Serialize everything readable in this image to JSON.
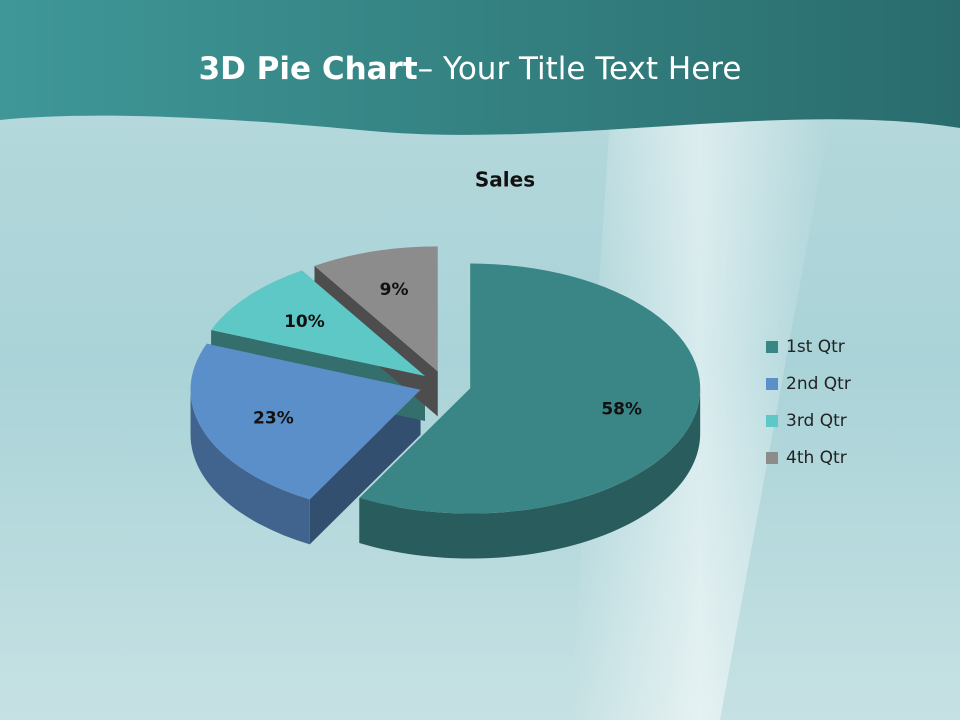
{
  "slide": {
    "title_bold": "3D Pie Chart",
    "title_rest": "– Your Title Text Here"
  },
  "chart_data": {
    "type": "pie",
    "title": "Sales",
    "categories": [
      "1st Qtr",
      "2nd Qtr",
      "3rd Qtr",
      "4th Qtr"
    ],
    "values": [
      58,
      23,
      10,
      9
    ],
    "value_labels": [
      "58%",
      "23%",
      "10%",
      "9%"
    ],
    "colors": [
      "#3a8585",
      "#5b8fc9",
      "#5ec8c6",
      "#8c8c8c"
    ],
    "legend": "right"
  }
}
